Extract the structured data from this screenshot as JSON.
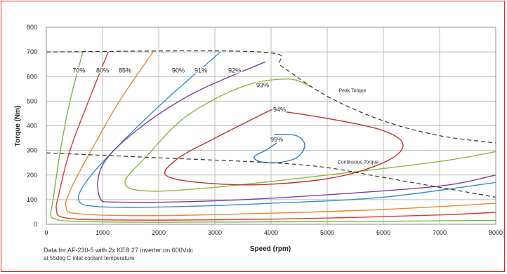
{
  "chart_data": {
    "type": "line",
    "title": "",
    "xlabel": "Speed (rpm)",
    "ylabel": "Torque (Nm)",
    "xlim": [
      0,
      8000
    ],
    "ylim": [
      0,
      800
    ],
    "xticks": [
      "0",
      "1000",
      "2000",
      "3000",
      "4000",
      "5000",
      "6000",
      "7000",
      "8000"
    ],
    "yticks": [
      "0",
      "100",
      "200",
      "300",
      "400",
      "500",
      "600",
      "700",
      "800"
    ],
    "grid": true,
    "legend": "none",
    "boundaries": [
      {
        "label": "Peak Torque",
        "style": "dashed",
        "color": "#333333",
        "points": [
          [
            0,
            700
          ],
          [
            3800,
            700
          ],
          [
            4200,
            640
          ],
          [
            5000,
            520
          ],
          [
            6000,
            420
          ],
          [
            7000,
            360
          ],
          [
            8000,
            330
          ]
        ]
      },
      {
        "label": "Continuous Torque",
        "style": "dashed",
        "color": "#333333",
        "points": [
          [
            0,
            290
          ],
          [
            2000,
            270
          ],
          [
            4000,
            250
          ],
          [
            5000,
            230
          ],
          [
            6000,
            190
          ],
          [
            7000,
            150
          ],
          [
            8000,
            110
          ]
        ]
      }
    ],
    "series": [
      {
        "name": "70%",
        "color": "#79b443",
        "points": [
          [
            650,
            700
          ],
          [
            420,
            500
          ],
          [
            250,
            300
          ],
          [
            120,
            100
          ],
          [
            80,
            40
          ],
          [
            150,
            22
          ],
          [
            500,
            12
          ],
          [
            2000,
            8
          ],
          [
            4000,
            10
          ],
          [
            6000,
            12
          ],
          [
            8000,
            16
          ]
        ]
      },
      {
        "name": "80%",
        "color": "#d9392f",
        "points": [
          [
            1100,
            700
          ],
          [
            750,
            500
          ],
          [
            420,
            300
          ],
          [
            220,
            120
          ],
          [
            180,
            60
          ],
          [
            300,
            28
          ],
          [
            1000,
            18
          ],
          [
            3000,
            18
          ],
          [
            5000,
            25
          ],
          [
            7000,
            38
          ],
          [
            8000,
            48
          ]
        ]
      },
      {
        "name": "85%",
        "color": "#f0862d",
        "points": [
          [
            1900,
            700
          ],
          [
            1300,
            500
          ],
          [
            800,
            300
          ],
          [
            450,
            150
          ],
          [
            350,
            70
          ],
          [
            600,
            42
          ],
          [
            2000,
            35
          ],
          [
            4000,
            45
          ],
          [
            6000,
            60
          ],
          [
            8000,
            85
          ]
        ]
      },
      {
        "name": "90%",
        "color": "#2e8fd2",
        "points": [
          [
            3100,
            700
          ],
          [
            2100,
            500
          ],
          [
            1200,
            300
          ],
          [
            700,
            170
          ],
          [
            580,
            95
          ],
          [
            900,
            72
          ],
          [
            2000,
            70
          ],
          [
            4000,
            85
          ],
          [
            6000,
            110
          ],
          [
            8000,
            170
          ]
        ]
      },
      {
        "name": "91%",
        "color": "#7c3fa0",
        "points": [
          [
            3900,
            660
          ],
          [
            2600,
            530
          ],
          [
            1600,
            380
          ],
          [
            1000,
            240
          ],
          [
            950,
            110
          ],
          [
            1300,
            90
          ],
          [
            3000,
            95
          ],
          [
            5000,
            120
          ],
          [
            7000,
            155
          ],
          [
            8000,
            200
          ]
        ]
      },
      {
        "name": "92%",
        "color": "#8db93f",
        "points": [
          [
            4700,
            560
          ],
          [
            4300,
            590
          ],
          [
            3500,
            560
          ],
          [
            2500,
            440
          ],
          [
            1800,
            280
          ],
          [
            1400,
            170
          ],
          [
            1800,
            135
          ],
          [
            3000,
            150
          ],
          [
            5000,
            200
          ],
          [
            7000,
            255
          ],
          [
            8000,
            295
          ]
        ]
      },
      {
        "name": "93%",
        "color": "#c4302b",
        "points": [
          [
            4000,
            465
          ],
          [
            5000,
            430
          ],
          [
            6000,
            380
          ],
          [
            6350,
            320
          ],
          [
            6000,
            250
          ],
          [
            5000,
            185
          ],
          [
            3500,
            160
          ],
          [
            2200,
            190
          ],
          [
            2300,
            260
          ],
          [
            3000,
            350
          ],
          [
            4000,
            465
          ]
        ]
      },
      {
        "name": "94%",
        "color": "#2e7bbf",
        "points": [
          [
            4050,
            365
          ],
          [
            4450,
            360
          ],
          [
            4600,
            320
          ],
          [
            4450,
            270
          ],
          [
            4100,
            250
          ],
          [
            3800,
            255
          ],
          [
            3700,
            275
          ],
          [
            3900,
            300
          ],
          [
            4100,
            330
          ]
        ]
      }
    ],
    "annotations": [
      {
        "text": "70%",
        "x": 580,
        "y": 625
      },
      {
        "text": "80%",
        "x": 1000,
        "y": 625
      },
      {
        "text": "85%",
        "x": 1400,
        "y": 625
      },
      {
        "text": "90%",
        "x": 2350,
        "y": 625
      },
      {
        "text": "91%",
        "x": 2750,
        "y": 625
      },
      {
        "text": "92%",
        "x": 3350,
        "y": 625
      },
      {
        "text": "93%",
        "x": 3850,
        "y": 565
      },
      {
        "text": "94%",
        "x": 4150,
        "y": 465
      },
      {
        "text": "95%",
        "x": 4100,
        "y": 345
      },
      {
        "text": "Peak Torque",
        "x": 5450,
        "y": 545
      },
      {
        "text": "Continuous Torque",
        "x": 5550,
        "y": 255
      }
    ]
  },
  "notes": {
    "line1": "Data for AF-230-5 with 2x KEB 27 inverter on 600Vdc",
    "line2": "at 55deg C inlet coolant temperature"
  }
}
